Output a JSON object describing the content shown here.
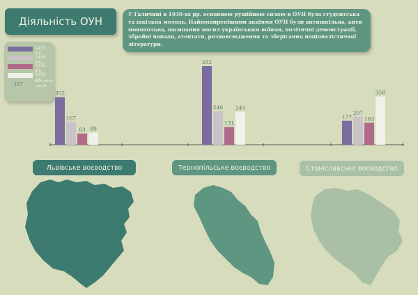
{
  "title": "Діяльність ОУН",
  "description": "У Галичині в 1930-хх рр. основною рушійною силою в ОУН була студентська та шкільна молодь. Найпоширенішими акціями ОУН були антишкільна, анти монопольна, насипання могил українським воїнам, політичні демонстрації, збройні напади, атентати, розповсюдження та зберігання націоналістичної літератури.",
  "legend": {
    "count_value": "167",
    "count_label": "кількість акцій"
  },
  "chart_data": {
    "type": "bar",
    "categories": [
      "Львівське воєводство",
      "Тернопільське воєводство",
      "Станіславське воєводство"
    ],
    "series": [
      {
        "name": "1933 рік",
        "values": [
          352,
          582,
          177
        ],
        "color": "#7b6c9e"
      },
      {
        "name": "1934 рік",
        "values": [
          167,
          246,
          207
        ],
        "color": "#c9c3c8"
      },
      {
        "name": "1935 рік",
        "values": [
          83,
          131,
          163
        ],
        "color": "#b06a8a"
      },
      {
        "name": "1936 рік",
        "values": [
          89,
          245,
          358
        ],
        "color": "#f0f1e8"
      }
    ],
    "ylim": [
      0,
      600
    ],
    "xlabel": "",
    "ylabel": ""
  },
  "regions": [
    {
      "label": "Львівське воєводство",
      "bg": "#3d7a6f",
      "fg": "#eef2e2",
      "map_color": "#3d7a6f"
    },
    {
      "label": "Тернопільське воєводство",
      "bg": "#5f9682",
      "fg": "#eef2e2",
      "map_color": "#5f9682"
    },
    {
      "label": "Станіславське воєводство",
      "bg": "#a9c0a6",
      "fg": "#eef2e2",
      "map_color": "#a9c0a6"
    }
  ]
}
